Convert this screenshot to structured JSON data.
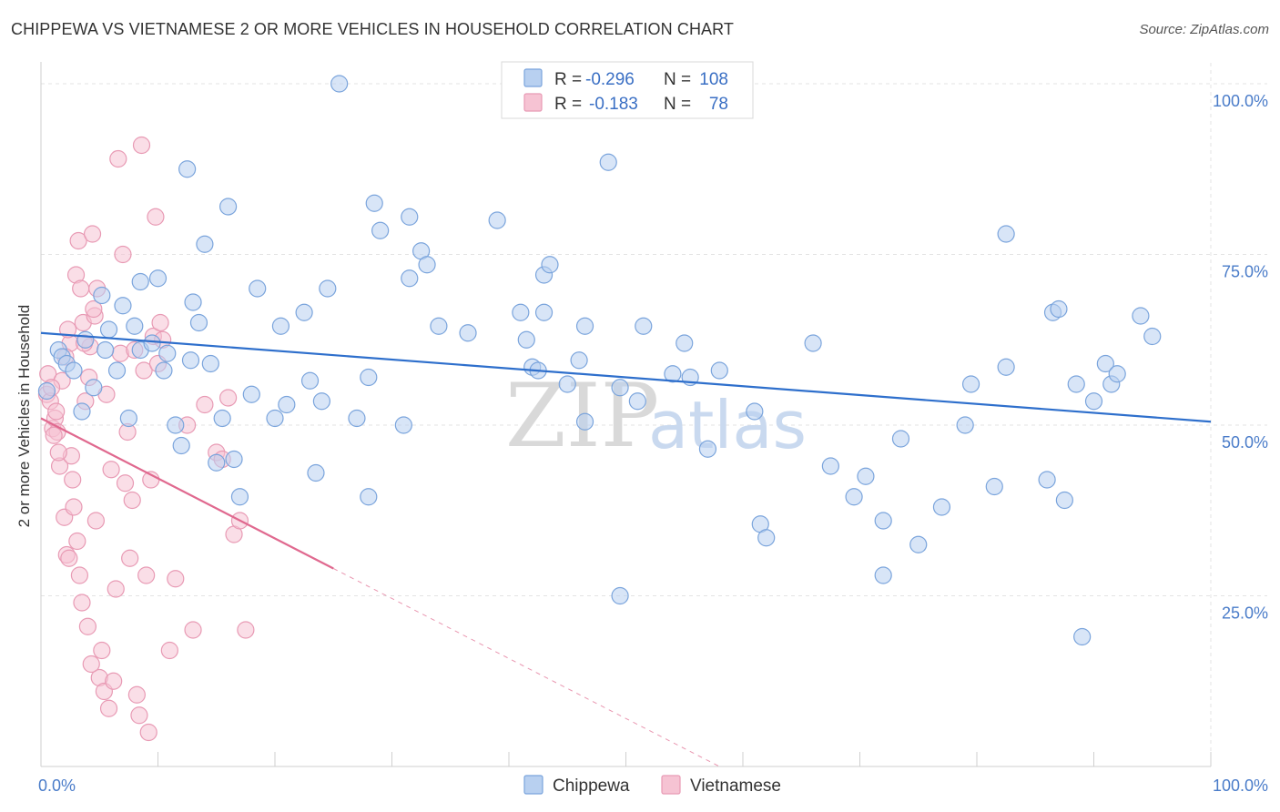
{
  "header": {
    "title": "CHIPPEWA VS VIETNAMESE 2 OR MORE VEHICLES IN HOUSEHOLD CORRELATION CHART",
    "source": "Source: ZipAtlas.com"
  },
  "watermark": {
    "zip": "ZIP",
    "atlas": "atlas"
  },
  "colors": {
    "chippewa_fill": "#b8d0f0",
    "chippewa_stroke": "#7aa4dc",
    "chippewa_line": "#2e6fcc",
    "vietnamese_fill": "#f6c3d3",
    "vietnamese_stroke": "#e89ab4",
    "vietnamese_line": "#e0698f"
  },
  "legend": {
    "rows": [
      {
        "r_label": "R =",
        "r_value": "-0.296",
        "n_label": "N =",
        "n_value": "108"
      },
      {
        "r_label": "R =",
        "r_value": "-0.183",
        "n_label": "N =",
        "n_value": "78"
      }
    ]
  },
  "chart_data": {
    "type": "scatter",
    "title": "CHIPPEWA VS VIETNAMESE 2 OR MORE VEHICLES IN HOUSEHOLD CORRELATION CHART",
    "xlabel": "",
    "ylabel": "2 or more Vehicles in Household",
    "xlim": [
      0,
      100
    ],
    "ylim": [
      0,
      102
    ],
    "x_tick_labels": [
      "0.0%",
      "100.0%"
    ],
    "y_tick_labels": [
      "100.0%",
      "75.0%",
      "50.0%",
      "25.0%"
    ],
    "y_ticks": [
      100,
      75,
      50,
      25
    ],
    "grid": true,
    "legend_position": "top-center",
    "series": [
      {
        "name": "Chippewa",
        "trend": {
          "x": [
            0,
            100
          ],
          "y": [
            63.5,
            50.5
          ]
        },
        "points": [
          [
            0.5,
            55
          ],
          [
            1.5,
            61
          ],
          [
            1.8,
            60
          ],
          [
            2.2,
            59
          ],
          [
            2.8,
            58
          ],
          [
            3.5,
            52
          ],
          [
            3.8,
            62.5
          ],
          [
            4.5,
            55.5
          ],
          [
            5.2,
            69
          ],
          [
            5.5,
            61
          ],
          [
            5.8,
            64
          ],
          [
            6.5,
            58
          ],
          [
            7,
            67.5
          ],
          [
            7.5,
            51
          ],
          [
            8,
            64.5
          ],
          [
            8.5,
            61
          ],
          [
            8.5,
            71
          ],
          [
            9.5,
            62
          ],
          [
            10,
            71.5
          ],
          [
            10.5,
            58
          ],
          [
            10.8,
            60.5
          ],
          [
            11.5,
            50
          ],
          [
            12,
            47
          ],
          [
            12.5,
            87.5
          ],
          [
            12.8,
            59.5
          ],
          [
            13,
            68
          ],
          [
            13.5,
            65
          ],
          [
            14,
            76.5
          ],
          [
            14.5,
            59
          ],
          [
            15,
            44.5
          ],
          [
            15.5,
            51
          ],
          [
            16,
            82
          ],
          [
            16.5,
            45
          ],
          [
            17,
            39.5
          ],
          [
            18,
            54.5
          ],
          [
            18.5,
            70
          ],
          [
            20,
            51
          ],
          [
            20.5,
            64.5
          ],
          [
            21,
            53
          ],
          [
            22.5,
            66.5
          ],
          [
            23,
            56.5
          ],
          [
            23.5,
            43
          ],
          [
            24,
            53.5
          ],
          [
            24.5,
            70
          ],
          [
            25.5,
            100
          ],
          [
            27,
            51
          ],
          [
            28,
            57
          ],
          [
            28,
            39.5
          ],
          [
            28.5,
            82.5
          ],
          [
            29,
            78.5
          ],
          [
            31,
            50
          ],
          [
            31.5,
            80.5
          ],
          [
            31.5,
            71.5
          ],
          [
            32.5,
            75.5
          ],
          [
            33,
            73.5
          ],
          [
            34,
            64.5
          ],
          [
            36.5,
            63.5
          ],
          [
            39,
            80
          ],
          [
            41,
            66.5
          ],
          [
            41.5,
            62.5
          ],
          [
            42,
            58.5
          ],
          [
            42.5,
            58
          ],
          [
            43,
            66.5
          ],
          [
            43,
            72
          ],
          [
            43.5,
            73.5
          ],
          [
            45,
            56
          ],
          [
            46,
            59.5
          ],
          [
            46.5,
            64.5
          ],
          [
            46.5,
            50.5
          ],
          [
            48.5,
            88.5
          ],
          [
            49.5,
            55.5
          ],
          [
            49.5,
            25
          ],
          [
            51,
            53.5
          ],
          [
            51.5,
            64.5
          ],
          [
            54,
            57.5
          ],
          [
            55,
            62
          ],
          [
            57,
            46.5
          ],
          [
            58,
            58
          ],
          [
            61,
            52
          ],
          [
            61.5,
            35.5
          ],
          [
            62,
            33.5
          ],
          [
            66,
            62
          ],
          [
            67.5,
            44
          ],
          [
            69.5,
            39.5
          ],
          [
            70.5,
            42.5
          ],
          [
            72,
            36
          ],
          [
            72,
            28
          ],
          [
            73.5,
            48
          ],
          [
            75,
            32.5
          ],
          [
            77,
            38
          ],
          [
            79,
            50
          ],
          [
            79.5,
            56
          ],
          [
            81.5,
            41
          ],
          [
            82.5,
            58.5
          ],
          [
            82.5,
            78
          ],
          [
            86,
            42
          ],
          [
            86.5,
            66.5
          ],
          [
            87,
            67
          ],
          [
            87.5,
            39
          ],
          [
            88.5,
            56
          ],
          [
            89,
            19
          ],
          [
            90,
            53.5
          ],
          [
            91,
            59
          ],
          [
            91.5,
            56
          ],
          [
            92,
            57.5
          ],
          [
            94,
            66
          ],
          [
            95,
            63
          ],
          [
            55.5,
            57
          ]
        ]
      },
      {
        "name": "Vietnamese",
        "trend": {
          "x": [
            0,
            25
          ],
          "y": [
            51,
            29
          ]
        },
        "trend_extension": {
          "x": [
            25,
            58
          ],
          "y": [
            29,
            0
          ]
        },
        "points": [
          [
            0.5,
            54.5
          ],
          [
            0.6,
            57.5
          ],
          [
            0.8,
            53.5
          ],
          [
            1,
            49.5
          ],
          [
            1.2,
            51
          ],
          [
            1.4,
            49
          ],
          [
            1.6,
            44
          ],
          [
            1.8,
            56.5
          ],
          [
            2,
            36.5
          ],
          [
            2.2,
            31
          ],
          [
            2.4,
            30.5
          ],
          [
            2.5,
            62
          ],
          [
            2.6,
            45.5
          ],
          [
            2.8,
            38
          ],
          [
            3,
            72
          ],
          [
            3.2,
            77
          ],
          [
            3.4,
            70
          ],
          [
            3.5,
            24
          ],
          [
            3.6,
            65
          ],
          [
            3.8,
            53.5
          ],
          [
            4,
            20.5
          ],
          [
            4.2,
            61.5
          ],
          [
            4.4,
            78
          ],
          [
            4.6,
            66
          ],
          [
            4.8,
            70
          ],
          [
            5,
            13
          ],
          [
            5.2,
            17
          ],
          [
            5.4,
            11
          ],
          [
            5.6,
            54.5
          ],
          [
            5.8,
            8.5
          ],
          [
            6,
            43.5
          ],
          [
            6.2,
            12.5
          ],
          [
            6.4,
            26
          ],
          [
            6.6,
            89
          ],
          [
            6.8,
            60.5
          ],
          [
            7,
            75
          ],
          [
            7.2,
            41.5
          ],
          [
            7.4,
            49
          ],
          [
            7.6,
            30.5
          ],
          [
            7.8,
            39
          ],
          [
            8,
            61
          ],
          [
            8.2,
            10.5
          ],
          [
            8.4,
            7.5
          ],
          [
            8.6,
            91
          ],
          [
            8.8,
            58
          ],
          [
            9,
            28
          ],
          [
            9.2,
            5
          ],
          [
            9.4,
            42
          ],
          [
            9.6,
            63
          ],
          [
            9.8,
            80.5
          ],
          [
            10,
            59
          ],
          [
            10.2,
            65
          ],
          [
            10.4,
            62.5
          ],
          [
            11,
            17
          ],
          [
            11.5,
            27.5
          ],
          [
            12.5,
            50
          ],
          [
            13,
            20
          ],
          [
            14,
            53
          ],
          [
            15,
            46
          ],
          [
            15.5,
            45
          ],
          [
            16,
            54
          ],
          [
            16.5,
            34
          ],
          [
            17,
            36
          ],
          [
            17.5,
            20
          ],
          [
            0.9,
            55.5
          ],
          [
            1.1,
            48.5
          ],
          [
            1.3,
            52
          ],
          [
            1.5,
            46
          ],
          [
            2.1,
            60
          ],
          [
            2.3,
            64
          ],
          [
            2.7,
            42
          ],
          [
            3.1,
            33
          ],
          [
            3.3,
            28
          ],
          [
            3.7,
            62
          ],
          [
            4.1,
            57
          ],
          [
            4.3,
            15
          ],
          [
            4.5,
            67
          ],
          [
            4.7,
            36
          ]
        ]
      }
    ]
  }
}
